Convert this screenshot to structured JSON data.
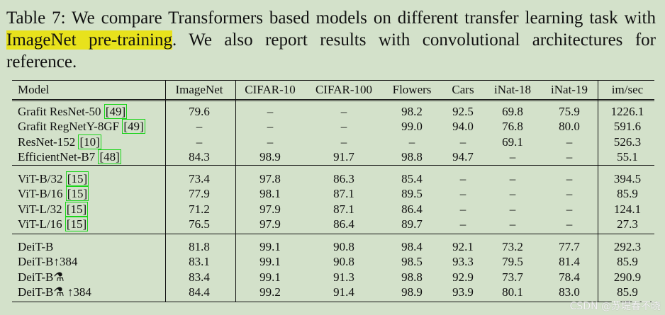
{
  "caption": {
    "before": "Table 7: We compare Transformers based models on different transfer learning task with ",
    "highlight": "ImageNet pre-training",
    "after": ". We also report results with convolutional architectures for reference."
  },
  "table": {
    "header": [
      "Model",
      "ImageNet",
      "CIFAR-10",
      "CIFAR-100",
      "Flowers",
      "Cars",
      "iNat-18",
      "iNat-19",
      "im/sec"
    ],
    "groups": [
      {
        "rows": [
          {
            "model": "Grafit ResNet-50 ",
            "cite": "[49]",
            "cells": [
              "79.6",
              "–",
              "–",
              "98.2",
              "92.5",
              "69.8",
              "75.9",
              "1226.1"
            ]
          },
          {
            "model": "Grafit RegNetY-8GF ",
            "cite": "[49]",
            "cells": [
              "–",
              "–",
              "–",
              "99.0",
              "94.0",
              "76.8",
              "80.0",
              "591.6"
            ]
          },
          {
            "model": "ResNet-152 ",
            "cite": "[10]",
            "cells": [
              "–",
              "–",
              "–",
              "–",
              "–",
              "69.1",
              "–",
              "526.3"
            ]
          },
          {
            "model": "EfficientNet-B7 ",
            "cite": "[48]",
            "cells": [
              "84.3",
              "98.9",
              "91.7",
              "98.8",
              "94.7",
              "–",
              "–",
              "55.1"
            ]
          }
        ]
      },
      {
        "rows": [
          {
            "model": "ViT-B/32 ",
            "cite": "[15]",
            "cells": [
              "73.4",
              "97.8",
              "86.3",
              "85.4",
              "–",
              "–",
              "–",
              "394.5"
            ]
          },
          {
            "model": "ViT-B/16 ",
            "cite": "[15]",
            "cells": [
              "77.9",
              "98.1",
              "87.1",
              "89.5",
              "–",
              "–",
              "–",
              "85.9"
            ]
          },
          {
            "model": "ViT-L/32 ",
            "cite": "[15]",
            "cells": [
              "71.2",
              "97.9",
              "87.1",
              "86.4",
              "–",
              "–",
              "–",
              "124.1"
            ]
          },
          {
            "model": "ViT-L/16 ",
            "cite": "[15]",
            "cells": [
              "76.5",
              "97.9",
              "86.4",
              "89.7",
              "–",
              "–",
              "–",
              "27.3"
            ]
          }
        ]
      },
      {
        "rows": [
          {
            "model": "DeiT-B",
            "cells": [
              "81.8",
              "99.1",
              "90.8",
              "98.4",
              "92.1",
              "73.2",
              "77.7",
              "292.3"
            ]
          },
          {
            "model": "DeiT-B↑384",
            "cells": [
              "83.1",
              "99.1",
              "90.8",
              "98.5",
              "93.3",
              "79.5",
              "81.4",
              "85.9"
            ]
          },
          {
            "model": "DeiT-B⚗",
            "cells": [
              "83.4",
              "99.1",
              "91.3",
              "98.8",
              "92.9",
              "73.7",
              "78.4",
              "290.9"
            ]
          },
          {
            "model": "DeiT-B⚗ ↑384",
            "cells": [
              "84.4",
              "99.2",
              "91.4",
              "98.9",
              "93.9",
              "80.1",
              "83.0",
              "85.9"
            ]
          }
        ]
      }
    ]
  },
  "watermark": "CSDN @苏堤春不晓"
}
